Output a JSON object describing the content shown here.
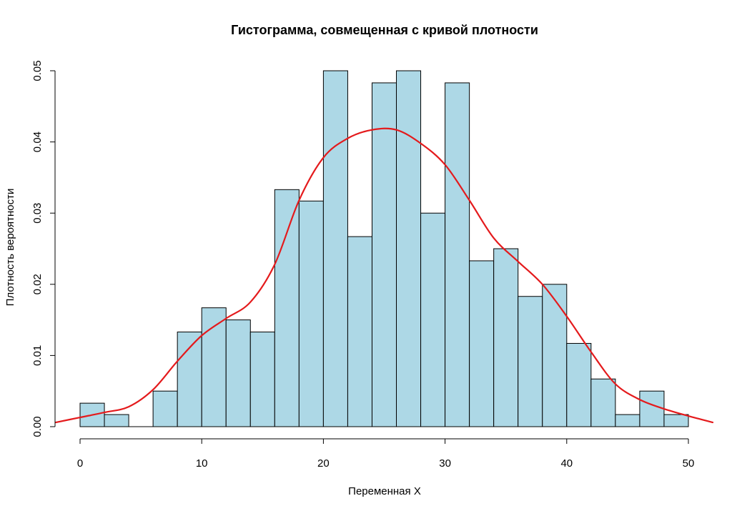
{
  "chart_data": {
    "type": "bar",
    "title": "Гистограмма, совмещенная с кривой плотности",
    "xlabel": "Переменная X",
    "ylabel": "Плотность вероятности",
    "xlim": [
      -2,
      52
    ],
    "ylim": [
      0,
      0.05
    ],
    "x_ticks": [
      0,
      10,
      20,
      30,
      40,
      50
    ],
    "y_ticks": [
      0,
      0.01,
      0.02,
      0.03,
      0.04,
      0.05
    ],
    "y_tick_labels": [
      "0.00",
      "0.01",
      "0.02",
      "0.03",
      "0.04",
      "0.05"
    ],
    "bin_edges": [
      0,
      2,
      4,
      6,
      8,
      10,
      12,
      14,
      16,
      18,
      20,
      22,
      24,
      26,
      28,
      30,
      32,
      34,
      36,
      38,
      40,
      42,
      44,
      46,
      48,
      50
    ],
    "values": [
      0.0033,
      0.0017,
      0.0,
      0.005,
      0.0133,
      0.0167,
      0.015,
      0.0133,
      0.0333,
      0.0317,
      0.05,
      0.0267,
      0.0483,
      0.05,
      0.03,
      0.0483,
      0.0233,
      0.025,
      0.0183,
      0.02,
      0.0117,
      0.0067,
      0.0017,
      0.005,
      0.0017
    ],
    "density_curve": {
      "x": [
        -2,
        0,
        2,
        4,
        6,
        8,
        10,
        12,
        14,
        16,
        18,
        20,
        22,
        24,
        26,
        28,
        30,
        32,
        34,
        36,
        38,
        40,
        42,
        44,
        46,
        48,
        50,
        52
      ],
      "y": [
        0.0006,
        0.0013,
        0.002,
        0.0028,
        0.0052,
        0.0092,
        0.0128,
        0.0152,
        0.0175,
        0.0228,
        0.0318,
        0.0378,
        0.0405,
        0.0417,
        0.0417,
        0.0398,
        0.0368,
        0.0318,
        0.0265,
        0.0232,
        0.02,
        0.0155,
        0.0105,
        0.006,
        0.0038,
        0.0025,
        0.0015,
        0.0006
      ],
      "color": "#e41a1c"
    },
    "bar_color": "#add8e6",
    "grid": false,
    "legend": "none"
  }
}
